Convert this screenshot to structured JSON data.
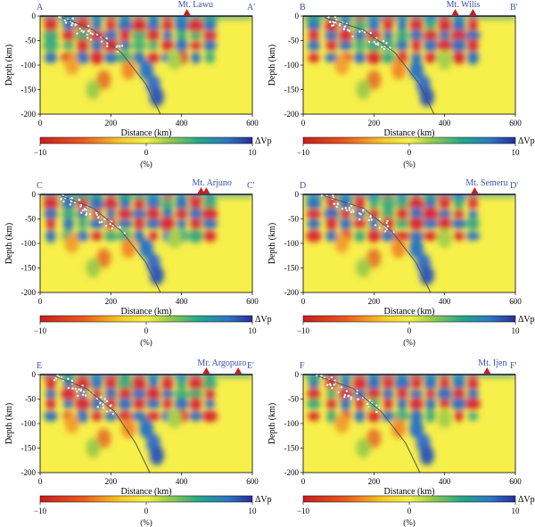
{
  "chart_data": [
    {
      "type": "heatmap",
      "profile_start": "A",
      "profile_end": "A'",
      "volcanoes": [
        {
          "name": "Mt. Lawu",
          "x": 415
        }
      ],
      "labeled_volcano": "Mt. Lawu",
      "xlabel": "Distance (km)",
      "ylabel": "Depth (km)",
      "xlim": [
        0,
        600
      ],
      "ylim": [
        0,
        200
      ],
      "xticks": [
        "0",
        "200",
        "400",
        "600"
      ],
      "yticks": [
        "0",
        "-50",
        "-100",
        "-150",
        "-200"
      ],
      "colorbar": {
        "label": "ΔVp",
        "unit": "(%)",
        "ticks": [
          "−10",
          "0",
          "10"
        ],
        "range": [
          -10,
          10
        ]
      },
      "slab": [
        [
          60,
          3
        ],
        [
          150,
          28
        ],
        [
          230,
          75
        ],
        [
          300,
          140
        ],
        [
          340,
          200
        ]
      ]
    },
    {
      "type": "heatmap",
      "profile_start": "B",
      "profile_end": "B'",
      "volcanoes": [
        {
          "name": "Mt. Wilis",
          "x": 430
        },
        {
          "name": "",
          "x": 480
        }
      ],
      "labeled_volcano": "Mt. Wilis",
      "xlabel": "Distance (km)",
      "ylabel": "Depth (km)",
      "xlim": [
        0,
        600
      ],
      "ylim": [
        0,
        200
      ],
      "xticks": [
        "0",
        "200",
        "400",
        "600"
      ],
      "yticks": [
        "0",
        "-50",
        "-100",
        "-150",
        "-200"
      ],
      "colorbar": {
        "label": "ΔVp",
        "unit": "(%)",
        "ticks": [
          "−10",
          "0",
          "10"
        ],
        "range": [
          -10,
          10
        ]
      },
      "slab": [
        [
          60,
          3
        ],
        [
          170,
          28
        ],
        [
          260,
          75
        ],
        [
          330,
          140
        ],
        [
          370,
          200
        ]
      ]
    },
    {
      "type": "heatmap",
      "profile_start": "C",
      "profile_end": "C'",
      "volcanoes": [
        {
          "name": "Mt. Arjuno",
          "x": 455
        },
        {
          "name": "",
          "x": 470
        }
      ],
      "labeled_volcano": "Mt. Arjuno",
      "xlabel": "Distance (km)",
      "ylabel": "Depth (km)",
      "xlim": [
        0,
        600
      ],
      "ylim": [
        0,
        200
      ],
      "xticks": [
        "0",
        "200",
        "400",
        "600"
      ],
      "yticks": [
        "0",
        "-50",
        "-100",
        "-150",
        "-200"
      ],
      "colorbar": {
        "label": "ΔVp",
        "unit": "(%)",
        "ticks": [
          "−10",
          "0",
          "10"
        ],
        "range": [
          -10,
          10
        ]
      },
      "slab": [
        [
          60,
          3
        ],
        [
          150,
          28
        ],
        [
          230,
          75
        ],
        [
          300,
          140
        ],
        [
          340,
          200
        ]
      ]
    },
    {
      "type": "heatmap",
      "profile_start": "D",
      "profile_end": "D'",
      "volcanoes": [
        {
          "name": "Mt. Semeru",
          "x": 485
        }
      ],
      "labeled_volcano": "Mt. Semeru",
      "xlabel": "Distance (km)",
      "ylabel": "Depth (km)",
      "xlim": [
        0,
        600
      ],
      "ylim": [
        0,
        200
      ],
      "xticks": [
        "0",
        "200",
        "400",
        "600"
      ],
      "yticks": [
        "0",
        "-50",
        "-100",
        "-150",
        "-200"
      ],
      "colorbar": {
        "label": "ΔVp",
        "unit": "(%)",
        "ticks": [
          "−10",
          "0",
          "10"
        ],
        "range": [
          -10,
          10
        ]
      },
      "slab": [
        [
          60,
          3
        ],
        [
          170,
          28
        ],
        [
          250,
          75
        ],
        [
          320,
          140
        ],
        [
          360,
          200
        ]
      ]
    },
    {
      "type": "heatmap",
      "profile_start": "E",
      "profile_end": "E'",
      "volcanoes": [
        {
          "name": "Mr. Argopuro",
          "x": 470
        },
        {
          "name": "",
          "x": 560
        }
      ],
      "labeled_volcano": "Mr. Argopuro",
      "xlabel": "Distance (km)",
      "ylabel": "Depth (km)",
      "xlim": [
        0,
        600
      ],
      "ylim": [
        0,
        200
      ],
      "xticks": [
        "0",
        "200",
        "400",
        "600"
      ],
      "yticks": [
        "0",
        "-50",
        "-100",
        "-150",
        "-200"
      ],
      "colorbar": {
        "label": "ΔVp",
        "unit": "(%)",
        "ticks": [
          "−10",
          "0",
          "10"
        ],
        "range": [
          -10,
          10
        ]
      },
      "slab": [
        [
          40,
          3
        ],
        [
          130,
          28
        ],
        [
          210,
          75
        ],
        [
          270,
          140
        ],
        [
          310,
          200
        ]
      ]
    },
    {
      "type": "heatmap",
      "profile_start": "F",
      "profile_end": "F'",
      "volcanoes": [
        {
          "name": "Mt. Ijen",
          "x": 520
        }
      ],
      "labeled_volcano": "Mt. Ijen",
      "xlabel": "Distance (km)",
      "ylabel": "Depth (km)",
      "xlim": [
        0,
        600
      ],
      "ylim": [
        0,
        200
      ],
      "xticks": [
        "0",
        "200",
        "400",
        "600"
      ],
      "yticks": [
        "0",
        "-50",
        "-100",
        "-150",
        "-200"
      ],
      "colorbar": {
        "label": "ΔVp",
        "unit": "(%)",
        "ticks": [
          "−10",
          "0",
          "10"
        ],
        "range": [
          -10,
          10
        ]
      },
      "slab": [
        [
          40,
          3
        ],
        [
          140,
          28
        ],
        [
          220,
          75
        ],
        [
          290,
          140
        ],
        [
          330,
          200
        ]
      ]
    }
  ]
}
